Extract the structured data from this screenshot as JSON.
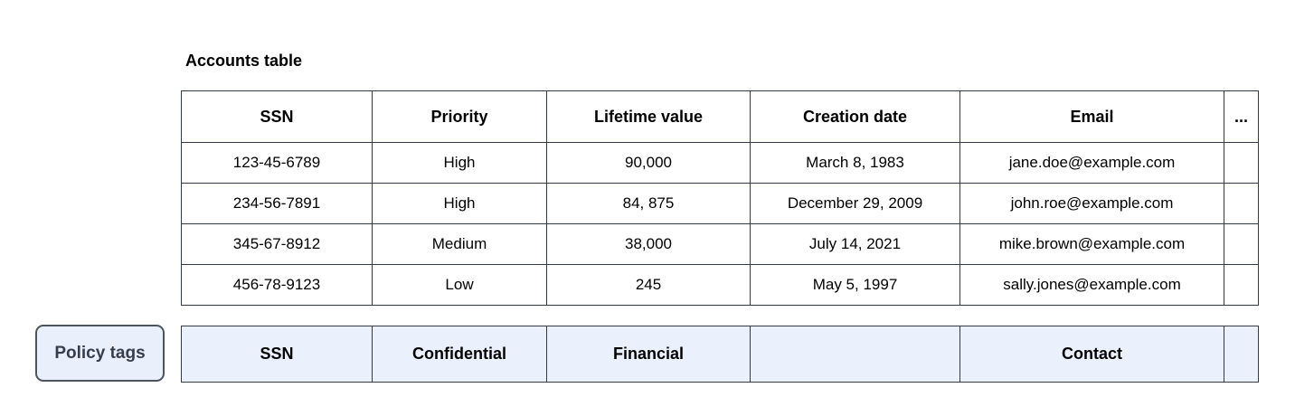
{
  "title": "Accounts table",
  "table": {
    "columns": [
      "SSN",
      "Priority",
      "Lifetime value",
      "Creation date",
      "Email",
      "..."
    ],
    "rows": [
      [
        "123-45-6789",
        "High",
        "90,000",
        "March 8, 1983",
        "jane.doe@example.com",
        ""
      ],
      [
        "234-56-7891",
        "High",
        "84, 875",
        "December 29, 2009",
        "john.roe@example.com",
        ""
      ],
      [
        "345-67-8912",
        "Medium",
        "38,000",
        "July 14, 2021",
        "mike.brown@example.com",
        ""
      ],
      [
        "456-78-9123",
        "Low",
        "245",
        "May 5, 1997",
        "sally.jones@example.com",
        ""
      ]
    ]
  },
  "policy": {
    "label": "Policy tags",
    "tags": [
      "SSN",
      "Confidential",
      "Financial",
      "",
      "Contact",
      ""
    ]
  },
  "colors": {
    "border": "#333a45",
    "policy_row_bg": "#eaf1fd",
    "policy_label_bg": "#e9effb",
    "policy_label_border": "#4d545e",
    "policy_text": "#363e4b"
  }
}
